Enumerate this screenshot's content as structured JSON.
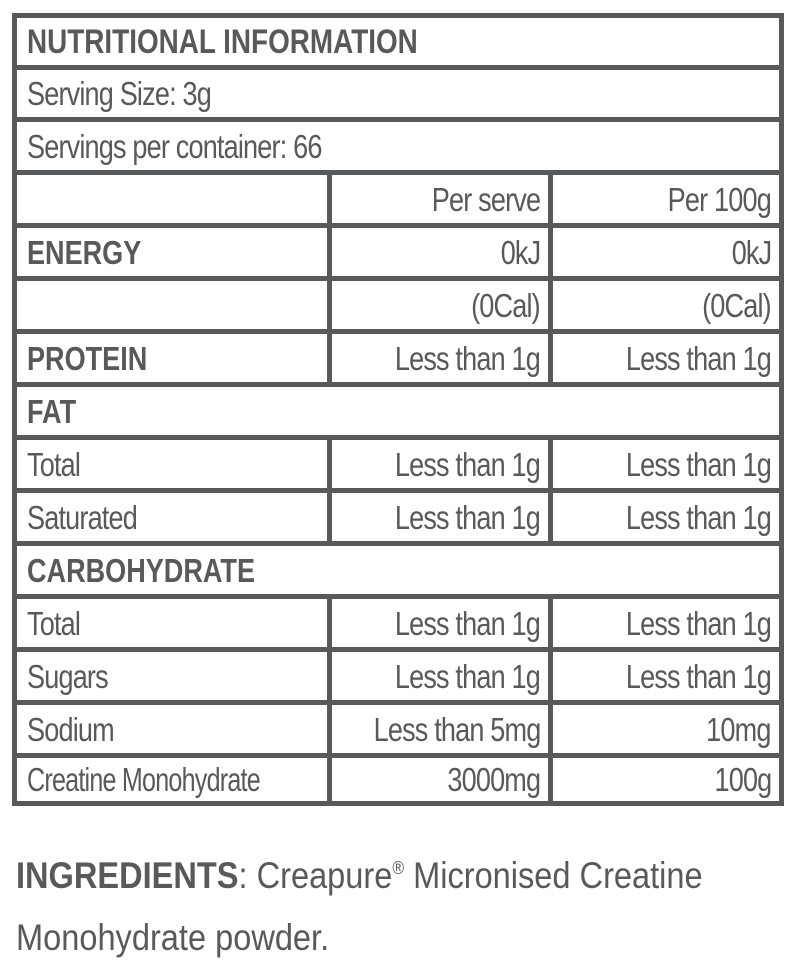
{
  "panel": {
    "title": "NUTRITIONAL INFORMATION",
    "serving_size": "Serving Size: 3g",
    "servings_per_container": "Servings per container: 66",
    "columns": {
      "per_serve": "Per serve",
      "per_100g": "Per 100g"
    },
    "rows": [
      {
        "label": "ENERGY",
        "serve": "0kJ",
        "per100": "0kJ"
      },
      {
        "label": "",
        "serve": "(0Cal)",
        "per100": "(0Cal)"
      },
      {
        "label": "PROTEIN",
        "serve": "Less than 1g",
        "per100": "Less than 1g"
      },
      {
        "label": "FAT"
      },
      {
        "label": "Total",
        "serve": "Less than 1g",
        "per100": "Less than 1g"
      },
      {
        "label": "Saturated",
        "serve": "Less than 1g",
        "per100": "Less than 1g"
      },
      {
        "label": "CARBOHYDRATE"
      },
      {
        "label": "Total",
        "serve": "Less than 1g",
        "per100": "Less than 1g"
      },
      {
        "label": "Sugars",
        "serve": "Less than 1g",
        "per100": "Less than 1g"
      },
      {
        "label": "Sodium",
        "serve": "Less than 5mg",
        "per100": "10mg"
      },
      {
        "label": "Creatine Monohydrate",
        "serve": "3000mg",
        "per100": "100g"
      }
    ]
  },
  "ingredients": {
    "label": "INGREDIENTS",
    "separator": ":",
    "brand": "Creapure",
    "registered_mark": "®",
    "line1_rest": "Micronised Creatine",
    "line2": "Monohydrate powder."
  },
  "colors": {
    "text": "#58595b",
    "border": "#58595b",
    "background": "#ffffff"
  }
}
